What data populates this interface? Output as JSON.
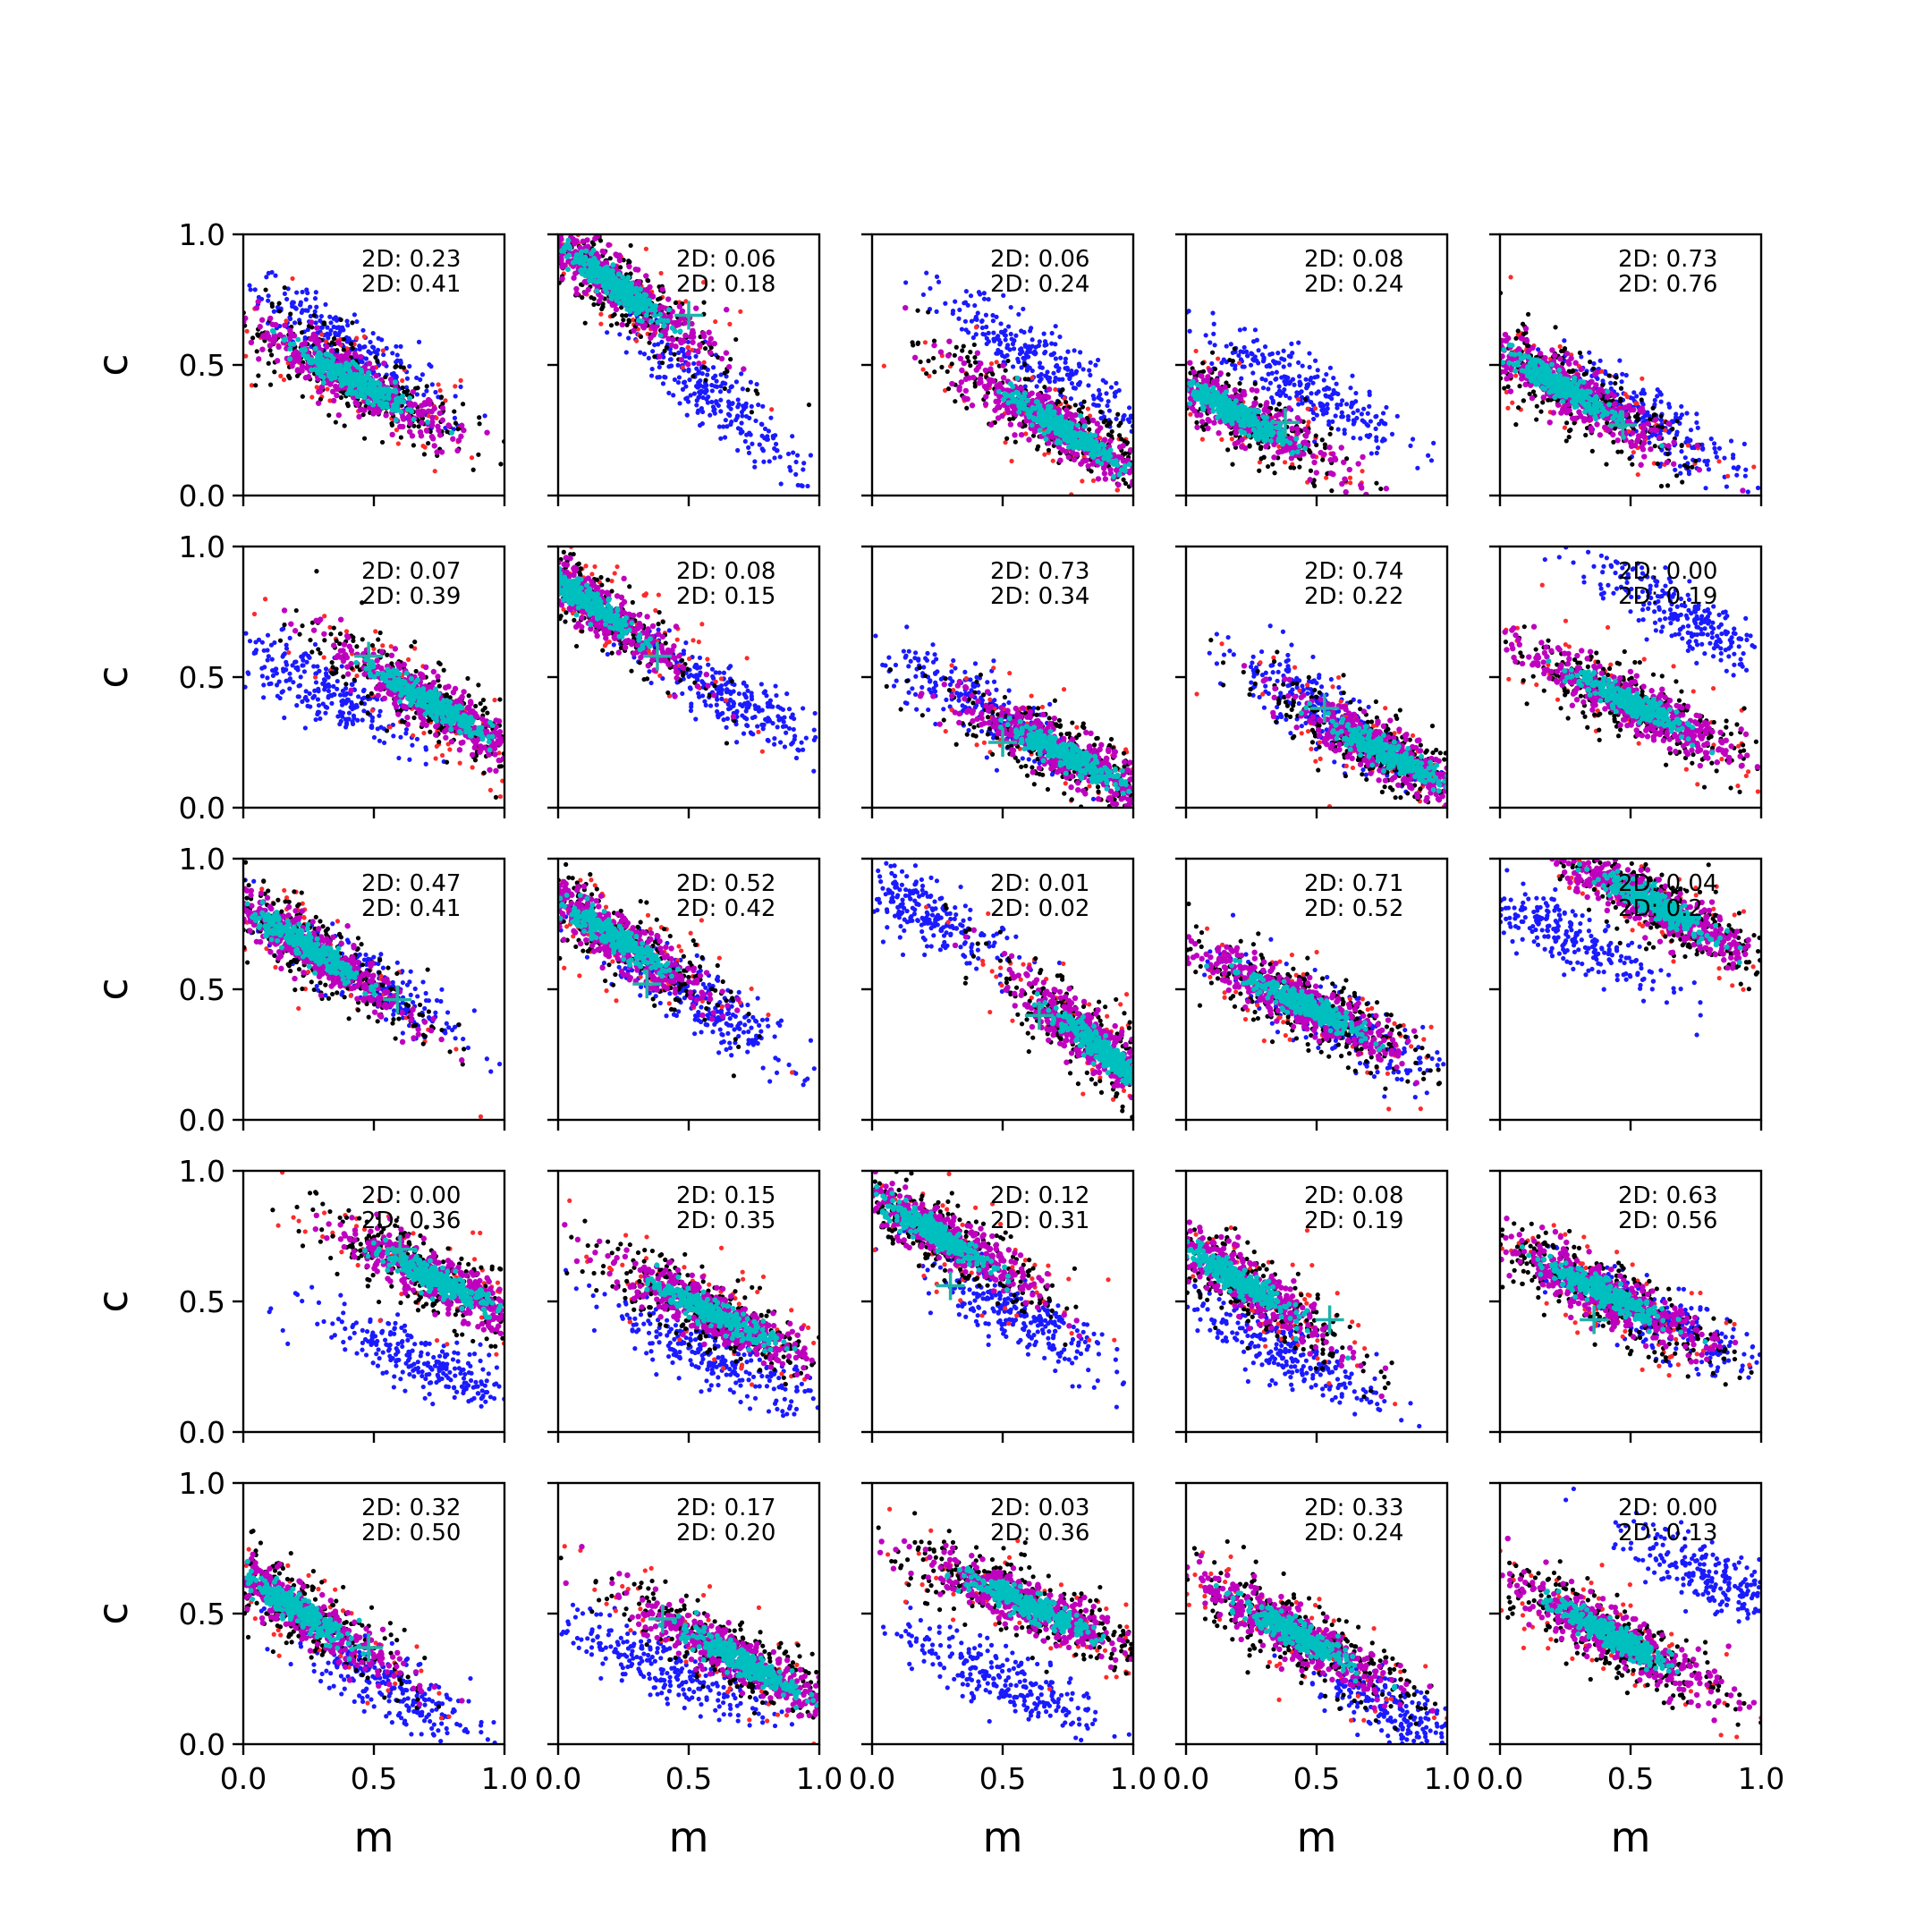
{
  "figure": {
    "colors": {
      "blue": "#1a1aff",
      "red": "#ff2a2a",
      "black": "#000000",
      "magenta": "#bf00bf",
      "cyan": "#00bfbf",
      "marker": "#20b2aa"
    }
  },
  "chart_data": {
    "type": "scatter",
    "layout": {
      "rows": 5,
      "cols": 5
    },
    "xlabel": "m",
    "ylabel": "c",
    "xlim": [
      0.0,
      1.0
    ],
    "ylim": [
      0.0,
      1.0
    ],
    "xticks": [
      "0.0",
      "0.5",
      "1.0"
    ],
    "yticks": [
      "0.0",
      "0.5",
      "1.0"
    ],
    "grid": false,
    "series_colors": {
      "blue": "#1a1aff",
      "red": "#ff2a2a",
      "black": "#000000",
      "magenta": "#bf00bf",
      "cyan": "#00bfbf"
    },
    "panels": [
      {
        "stats": [
          "2D: 0.23",
          "2D: 0.41"
        ],
        "blue": {
          "cx": 0.4,
          "cy": 0.57,
          "slope": -0.65
        },
        "main": {
          "cx": 0.42,
          "cy": 0.44,
          "slope": -0.55
        },
        "marker": null
      },
      {
        "stats": [
          "2D: 0.06",
          "2D: 0.18"
        ],
        "blue": {
          "cx": 0.6,
          "cy": 0.38,
          "slope": -0.9
        },
        "main": {
          "cx": 0.2,
          "cy": 0.82,
          "slope": -0.75
        },
        "marker": [
          0.5,
          0.69
        ]
      },
      {
        "stats": [
          "2D: 0.06",
          "2D: 0.24"
        ],
        "blue": {
          "cx": 0.65,
          "cy": 0.52,
          "slope": -0.65
        },
        "main": {
          "cx": 0.72,
          "cy": 0.26,
          "slope": -0.6
        },
        "marker": null
      },
      {
        "stats": [
          "2D: 0.08",
          "2D: 0.24"
        ],
        "blue": {
          "cx": 0.45,
          "cy": 0.42,
          "slope": -0.55
        },
        "main": {
          "cx": 0.18,
          "cy": 0.32,
          "slope": -0.55
        },
        "marker": [
          0.38,
          0.28
        ]
      },
      {
        "stats": [
          "2D: 0.73",
          "2D: 0.76"
        ],
        "blue": {
          "cx": 0.55,
          "cy": 0.31,
          "slope": -0.6
        },
        "main": {
          "cx": 0.25,
          "cy": 0.41,
          "slope": -0.6
        },
        "marker": [
          0.47,
          0.27
        ]
      },
      {
        "stats": [
          "2D: 0.07",
          "2D: 0.39"
        ],
        "blue": {
          "cx": 0.3,
          "cy": 0.45,
          "slope": -0.55
        },
        "main": {
          "cx": 0.72,
          "cy": 0.4,
          "slope": -0.6
        },
        "marker": [
          0.48,
          0.58
        ]
      },
      {
        "stats": [
          "2D: 0.08",
          "2D: 0.15"
        ],
        "blue": {
          "cx": 0.65,
          "cy": 0.42,
          "slope": -0.6
        },
        "main": {
          "cx": 0.1,
          "cy": 0.8,
          "slope": -0.7
        },
        "marker": [
          0.38,
          0.58
        ]
      },
      {
        "stats": [
          "2D: 0.73",
          "2D: 0.34"
        ],
        "blue": {
          "cx": 0.45,
          "cy": 0.36,
          "slope": -0.6
        },
        "main": {
          "cx": 0.75,
          "cy": 0.2,
          "slope": -0.5
        },
        "marker": [
          0.5,
          0.25
        ]
      },
      {
        "stats": [
          "2D: 0.74",
          "2D: 0.22"
        ],
        "blue": {
          "cx": 0.5,
          "cy": 0.38,
          "slope": -0.7
        },
        "main": {
          "cx": 0.78,
          "cy": 0.2,
          "slope": -0.55
        },
        "marker": [
          0.53,
          0.38
        ]
      },
      {
        "stats": [
          "2D: 0.00",
          "2D: 0.19"
        ],
        "blue": {
          "cx": 0.7,
          "cy": 0.74,
          "slope": -0.55
        },
        "main": {
          "cx": 0.5,
          "cy": 0.4,
          "slope": -0.5
        },
        "marker": null
      },
      {
        "stats": [
          "2D: 0.47",
          "2D: 0.41"
        ],
        "blue": {
          "cx": 0.45,
          "cy": 0.55,
          "slope": -0.6
        },
        "main": {
          "cx": 0.25,
          "cy": 0.66,
          "slope": -0.65
        },
        "marker": [
          0.59,
          0.46
        ]
      },
      {
        "stats": [
          "2D: 0.52",
          "2D: 0.42"
        ],
        "blue": {
          "cx": 0.55,
          "cy": 0.45,
          "slope": -0.65
        },
        "main": {
          "cx": 0.2,
          "cy": 0.71,
          "slope": -0.65
        },
        "marker": [
          0.34,
          0.52
        ]
      },
      {
        "stats": [
          "2D: 0.01",
          "2D: 0.02"
        ],
        "blue": {
          "cx": 0.2,
          "cy": 0.8,
          "slope": -0.6
        },
        "main": {
          "cx": 0.88,
          "cy": 0.27,
          "slope": -0.8
        },
        "marker": [
          0.64,
          0.4
        ]
      },
      {
        "stats": [
          "2D: 0.71",
          "2D: 0.52"
        ],
        "blue": {
          "cx": 0.55,
          "cy": 0.38,
          "slope": -0.55
        },
        "main": {
          "cx": 0.45,
          "cy": 0.44,
          "slope": -0.5
        },
        "marker": null
      },
      {
        "stats": [
          "2D: 0.04",
          "2D: 0.2"
        ],
        "blue": {
          "cx": 0.25,
          "cy": 0.71,
          "slope": -0.5
        },
        "main": {
          "cx": 0.6,
          "cy": 0.82,
          "slope": -0.55
        },
        "marker": null
      },
      {
        "stats": [
          "2D: 0.00",
          "2D: 0.36"
        ],
        "blue": {
          "cx": 0.68,
          "cy": 0.27,
          "slope": -0.45
        },
        "main": {
          "cx": 0.75,
          "cy": 0.58,
          "slope": -0.5
        },
        "marker": [
          0.6,
          0.7
        ]
      },
      {
        "stats": [
          "2D: 0.15",
          "2D: 0.35"
        ],
        "blue": {
          "cx": 0.6,
          "cy": 0.28,
          "slope": -0.5
        },
        "main": {
          "cx": 0.6,
          "cy": 0.45,
          "slope": -0.5
        },
        "marker": null
      },
      {
        "stats": [
          "2D: 0.12",
          "2D: 0.31"
        ],
        "blue": {
          "cx": 0.55,
          "cy": 0.45,
          "slope": -0.55
        },
        "main": {
          "cx": 0.25,
          "cy": 0.76,
          "slope": -0.6
        },
        "marker": [
          0.3,
          0.56
        ]
      },
      {
        "stats": [
          "2D: 0.08",
          "2D: 0.19"
        ],
        "blue": {
          "cx": 0.35,
          "cy": 0.32,
          "slope": -0.5
        },
        "main": {
          "cx": 0.2,
          "cy": 0.58,
          "slope": -0.65
        },
        "marker": [
          0.55,
          0.43
        ]
      },
      {
        "stats": [
          "2D: 0.63",
          "2D: 0.56"
        ],
        "blue": {
          "cx": 0.6,
          "cy": 0.43,
          "slope": -0.5
        },
        "main": {
          "cx": 0.4,
          "cy": 0.53,
          "slope": -0.5
        },
        "marker": [
          0.36,
          0.43
        ]
      },
      {
        "stats": [
          "2D: 0.32",
          "2D: 0.50"
        ],
        "blue": {
          "cx": 0.55,
          "cy": 0.22,
          "slope": -0.55
        },
        "main": {
          "cx": 0.2,
          "cy": 0.52,
          "slope": -0.65
        },
        "marker": [
          0.48,
          0.37
        ]
      },
      {
        "stats": [
          "2D: 0.17",
          "2D: 0.20"
        ],
        "blue": {
          "cx": 0.4,
          "cy": 0.3,
          "slope": -0.45
        },
        "main": {
          "cx": 0.7,
          "cy": 0.32,
          "slope": -0.55
        },
        "marker": [
          0.4,
          0.48
        ]
      },
      {
        "stats": [
          "2D: 0.03",
          "2D: 0.36"
        ],
        "blue": {
          "cx": 0.5,
          "cy": 0.25,
          "slope": -0.45
        },
        "main": {
          "cx": 0.6,
          "cy": 0.53,
          "slope": -0.45
        },
        "marker": null
      },
      {
        "stats": [
          "2D: 0.33",
          "2D: 0.24"
        ],
        "blue": {
          "cx": 0.85,
          "cy": 0.1,
          "slope": -0.55
        },
        "main": {
          "cx": 0.42,
          "cy": 0.42,
          "slope": -0.55
        },
        "marker": null
      },
      {
        "stats": [
          "2D: 0.00",
          "2D: 0.13"
        ],
        "blue": {
          "cx": 0.85,
          "cy": 0.62,
          "slope": -0.5
        },
        "main": {
          "cx": 0.42,
          "cy": 0.42,
          "slope": -0.55
        },
        "marker": null
      }
    ]
  }
}
